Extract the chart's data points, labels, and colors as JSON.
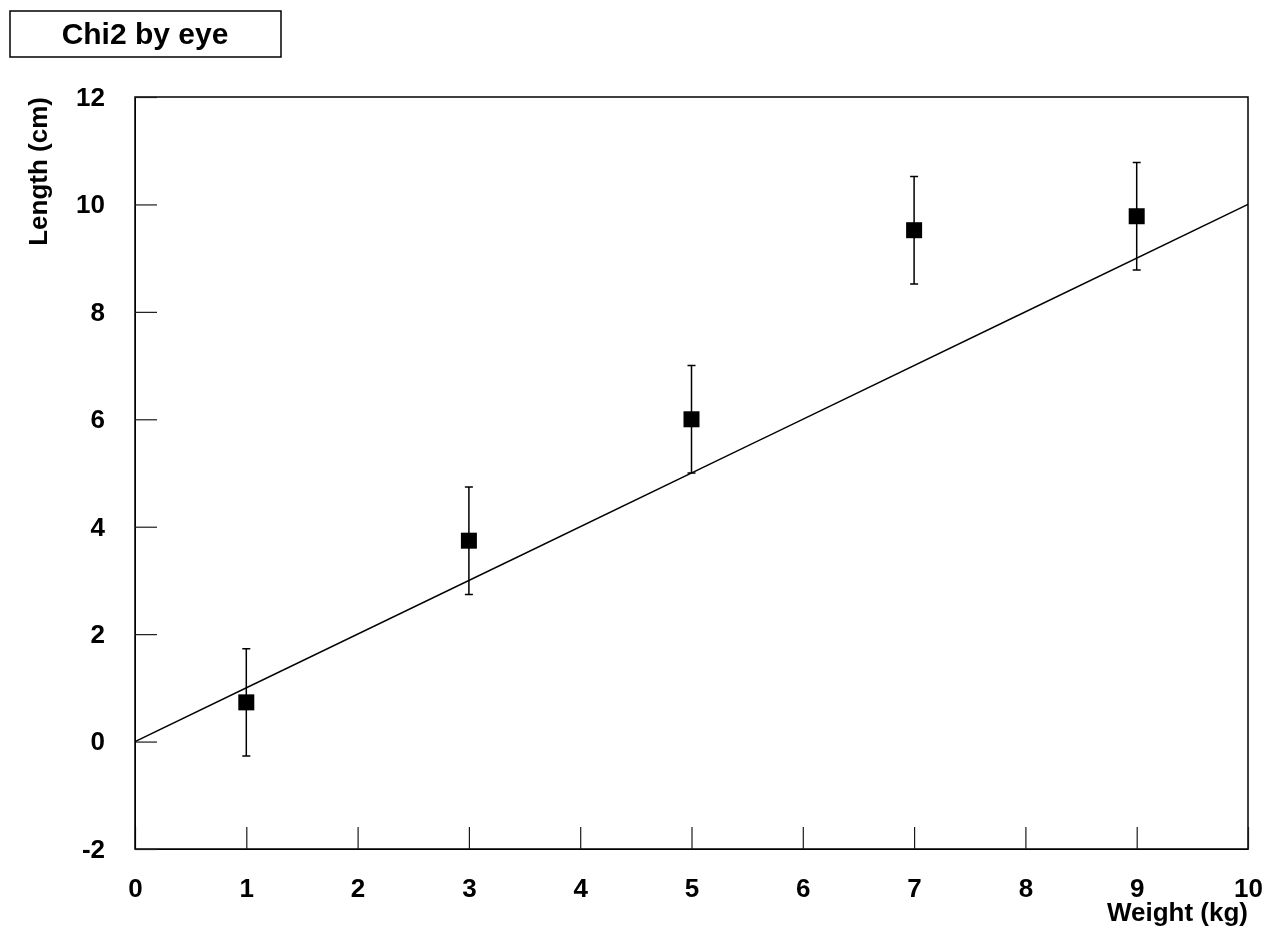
{
  "chart_data": {
    "type": "scatter",
    "title": "Chi2 by eye",
    "xlabel": "Weight (kg)",
    "ylabel": "Length (cm)",
    "marker": "square",
    "grid": false,
    "xlim": [
      0,
      10
    ],
    "ylim": [
      -2,
      12
    ],
    "xticks": [
      0,
      1,
      2,
      3,
      4,
      5,
      6,
      7,
      8,
      9,
      10
    ],
    "yticks": [
      -2,
      0,
      2,
      4,
      6,
      8,
      10,
      12
    ],
    "series": [
      {
        "color": "#000000",
        "x": [
          1,
          3,
          5,
          7,
          9
        ],
        "values": [
          0.73,
          3.74,
          6.0,
          9.52,
          9.78
        ],
        "errors": [
          1,
          1,
          1,
          1,
          1
        ]
      },
      {
        "type": "line",
        "color": "#000000",
        "x": [
          0,
          10
        ],
        "values": [
          0,
          10
        ],
        "line_style": "solid",
        "marker": "none"
      }
    ]
  }
}
